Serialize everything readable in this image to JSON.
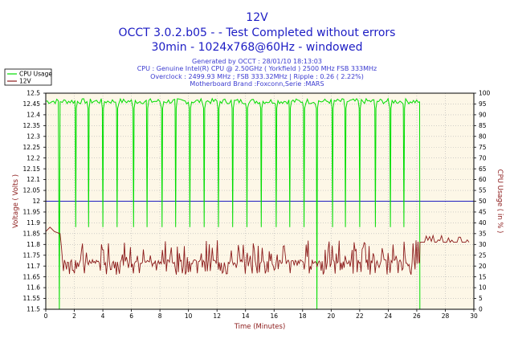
{
  "header": {
    "title": "12V",
    "subtitle": "OCCT 3.0.2.b05 -  - Test Completed without errors",
    "subtitle2": "30min - 1024x768@60Hz - windowed"
  },
  "info": {
    "line1": "Generated by OCCT : 28/01/10 18:13:03",
    "line2": "CPU : Genuine Intel(R) CPU @ 2.50GHz ( Yorkfield ) 2500 MHz FSB 333MHz",
    "line3": "Overclock : 2499.93 MHz ; FSB 333.32MHz | Ripple : 0.26 ( 2.22%)",
    "line4": "Motherboard Brand :Foxconn,Serie :MARS"
  },
  "colors": {
    "cpu": "#00dd00",
    "voltage": "#8b1a1a",
    "reference": "#2020c0",
    "plot_bg": "#fdf7e7",
    "title": "#1c1cc4"
  },
  "chart_data": {
    "type": "line",
    "xlabel": "Time (Minutes)",
    "ylabel_left": "Voltage ( Volts )",
    "ylabel_right": "CPU Usage ( in % )",
    "xlim": [
      0,
      30
    ],
    "ylim_left": [
      11.5,
      12.5
    ],
    "ylim_right": [
      0,
      100
    ],
    "x_ticks": [
      0,
      2,
      4,
      6,
      8,
      10,
      12,
      14,
      16,
      18,
      20,
      22,
      24,
      26,
      28,
      30
    ],
    "y_ticks_left": [
      "11.5",
      "11.55",
      "11.6",
      "11.65",
      "11.7",
      "11.75",
      "11.8",
      "11.85",
      "11.9",
      "11.95",
      "12",
      "12.05",
      "12.1",
      "12.15",
      "12.2",
      "12.25",
      "12.3",
      "12.35",
      "12.4",
      "12.45",
      "12.5"
    ],
    "y_ticks_right": [
      "0",
      "5",
      "10",
      "15",
      "20",
      "25",
      "30",
      "35",
      "40",
      "45",
      "50",
      "55",
      "60",
      "65",
      "70",
      "75",
      "80",
      "85",
      "90",
      "95",
      "100"
    ],
    "legend": {
      "placement": "top-left",
      "entries": [
        "CPU Usage",
        "12V"
      ]
    },
    "reference_line": {
      "value": 12.0,
      "axis": "left"
    },
    "cpu_usage": {
      "name": "CPU Usage",
      "axis": "right",
      "baseline": 96,
      "drops": [
        [
          0.95,
          0
        ],
        [
          2.1,
          38
        ],
        [
          3.0,
          38
        ],
        [
          4.0,
          38
        ],
        [
          5.0,
          38
        ],
        [
          6.15,
          38
        ],
        [
          7.1,
          38
        ],
        [
          8.15,
          38
        ],
        [
          9.1,
          38
        ],
        [
          10.1,
          38
        ],
        [
          11.1,
          38
        ],
        [
          12.1,
          38
        ],
        [
          13.1,
          38
        ],
        [
          14.1,
          38
        ],
        [
          15.1,
          38
        ],
        [
          16.15,
          38
        ],
        [
          17.1,
          38
        ],
        [
          18.1,
          38
        ],
        [
          19.0,
          0
        ],
        [
          20.1,
          38
        ],
        [
          21.0,
          38
        ],
        [
          22.0,
          38
        ],
        [
          23.1,
          38
        ],
        [
          24.15,
          38
        ],
        [
          25.1,
          38
        ],
        [
          26.2,
          0
        ]
      ],
      "end_time": 26.2,
      "after_end": 0
    },
    "voltage_12v": {
      "name": "12V",
      "axis": "left",
      "start": [
        [
          0,
          11.86
        ],
        [
          0.3,
          11.88
        ],
        [
          0.6,
          11.86
        ],
        [
          1.0,
          11.85
        ]
      ],
      "load_mean": 11.72,
      "load_range": [
        11.66,
        11.82
      ],
      "load_end_time": 26.2,
      "idle_value": 11.81,
      "idle_range": [
        11.79,
        11.85
      ]
    }
  }
}
